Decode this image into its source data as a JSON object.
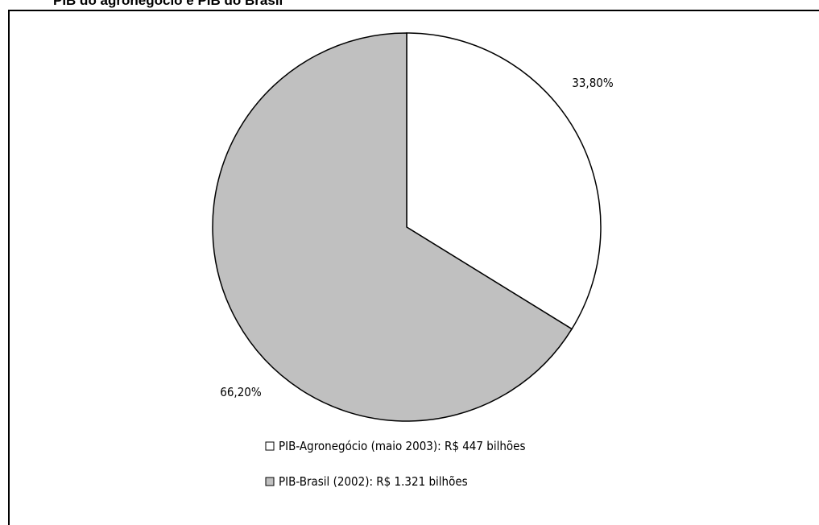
{
  "chart_data": {
    "type": "pie",
    "title": "PIB do agronegócio e PIB do Brasil",
    "start_angle_deg": -90,
    "direction": "clockwise",
    "slices": [
      {
        "label": "33,80%",
        "legend": "PIB-Agronegócio (maio 2003): R$ 447 bilhões",
        "value": 33.8,
        "color": "#ffffff"
      },
      {
        "label": "66,20%",
        "legend": "PIB-Brasil (2002): R$ 1.321 bilhões",
        "value": 66.2,
        "color": "#c0c0c0"
      }
    ],
    "legend_position": "bottom"
  }
}
